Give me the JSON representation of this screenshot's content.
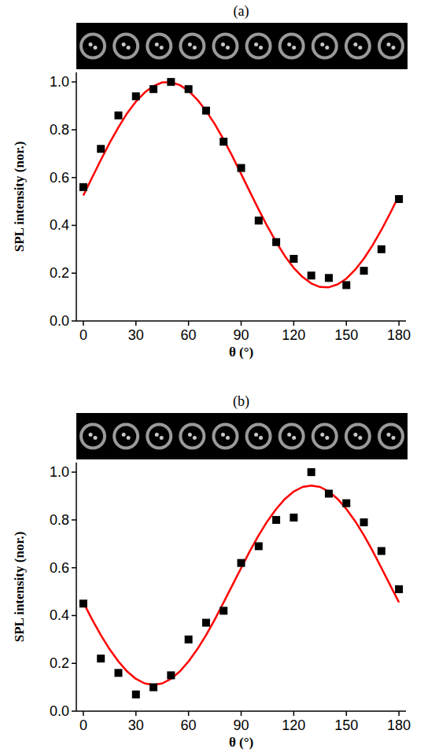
{
  "chart_data": [
    {
      "type": "scatter",
      "title": "(a)",
      "x_label": "θ (°)",
      "y_label": "SPL intensity (nor.)",
      "xlim": [
        -4,
        184
      ],
      "xticks": [
        0,
        30,
        60,
        90,
        120,
        150,
        180
      ],
      "ylim": [
        0,
        1.04
      ],
      "yticks": [
        {
          "value": 0,
          "label": "0.0"
        },
        0.2,
        0.4,
        0.6,
        0.8,
        {
          "value": 1,
          "label": "1.0"
        }
      ],
      "series": [
        {
          "type": "scatter",
          "color": "#000000",
          "marker": "square",
          "x": [
            0,
            10,
            20,
            30,
            40,
            50,
            60,
            70,
            80,
            90,
            100,
            110,
            120,
            130,
            140,
            150,
            160,
            170,
            180
          ],
          "values": [
            0.56,
            0.72,
            0.86,
            0.94,
            0.97,
            1.0,
            0.97,
            0.88,
            0.75,
            0.64,
            0.42,
            0.33,
            0.26,
            0.19,
            0.18,
            0.15,
            0.21,
            0.3,
            0.51
          ]
        },
        {
          "type": "line",
          "color": "#ff0000",
          "line_style": "solid",
          "x": [
            0,
            5,
            10,
            15,
            20,
            25,
            30,
            35,
            40,
            45,
            50,
            55,
            60,
            65,
            70,
            75,
            80,
            85,
            90,
            95,
            100,
            105,
            110,
            115,
            120,
            125,
            130,
            135,
            140,
            145,
            150,
            155,
            160,
            165,
            170,
            175,
            180
          ],
          "values": [
            0.525,
            0.6,
            0.674,
            0.745,
            0.81,
            0.869,
            0.918,
            0.956,
            0.983,
            0.998,
            0.999,
            0.987,
            0.963,
            0.926,
            0.879,
            0.823,
            0.759,
            0.689,
            0.615,
            0.54,
            0.466,
            0.395,
            0.33,
            0.271,
            0.222,
            0.184,
            0.157,
            0.142,
            0.141,
            0.153,
            0.177,
            0.214,
            0.261,
            0.317,
            0.381,
            0.451,
            0.525
          ]
        }
      ]
    },
    {
      "type": "scatter",
      "title": "(b)",
      "x_label": "θ (°)",
      "y_label": "SPL intensity (nor.)",
      "xlim": [
        -4,
        184
      ],
      "xticks": [
        0,
        30,
        60,
        90,
        120,
        150,
        180
      ],
      "ylim": [
        0,
        1.04
      ],
      "yticks": [
        {
          "value": 0,
          "label": "0.0"
        },
        0.2,
        0.4,
        0.6,
        0.8,
        {
          "value": 1,
          "label": "1.0"
        }
      ],
      "series": [
        {
          "type": "scatter",
          "color": "#000000",
          "marker": "square",
          "x": [
            0,
            10,
            20,
            30,
            40,
            50,
            60,
            70,
            80,
            90,
            100,
            110,
            120,
            130,
            140,
            150,
            160,
            170,
            180
          ],
          "values": [
            0.45,
            0.22,
            0.16,
            0.07,
            0.1,
            0.15,
            0.3,
            0.37,
            0.42,
            0.62,
            0.69,
            0.8,
            0.81,
            1.0,
            0.91,
            0.87,
            0.79,
            0.67,
            0.51
          ]
        },
        {
          "type": "line",
          "color": "#ff0000",
          "line_style": "solid",
          "x": [
            0,
            5,
            10,
            15,
            20,
            25,
            30,
            35,
            40,
            45,
            50,
            55,
            60,
            65,
            70,
            75,
            80,
            85,
            90,
            95,
            100,
            105,
            110,
            115,
            120,
            125,
            130,
            135,
            140,
            145,
            150,
            155,
            160,
            165,
            170,
            175,
            180
          ],
          "values": [
            0.455,
            0.384,
            0.318,
            0.259,
            0.208,
            0.166,
            0.135,
            0.116,
            0.11,
            0.116,
            0.135,
            0.166,
            0.208,
            0.259,
            0.318,
            0.384,
            0.455,
            0.527,
            0.599,
            0.67,
            0.736,
            0.795,
            0.846,
            0.888,
            0.919,
            0.938,
            0.944,
            0.938,
            0.919,
            0.888,
            0.846,
            0.795,
            0.736,
            0.67,
            0.599,
            0.527,
            0.455
          ]
        }
      ]
    }
  ]
}
